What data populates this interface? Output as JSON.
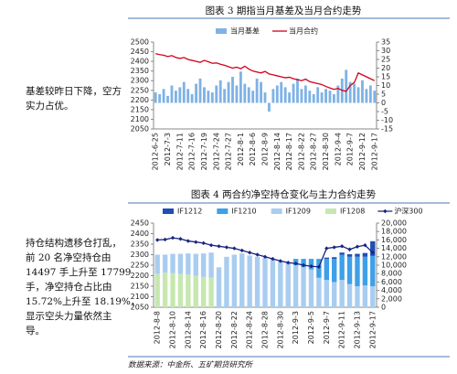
{
  "notes": [
    [
      "基差较昨日下降，空方",
      "实力占优。"
    ],
    [
      "持仓结构遗移仓打乱，",
      "前 20 名净空持仓由",
      "14497 手上升至 17799",
      "手，净空持仓占比由",
      "15.72%上升至 18.19%，",
      "显示空头力量依然主",
      "导。"
    ]
  ],
  "source": "数据来源：中金所、五矿期货研究所",
  "chart_data": [
    {
      "type": "combo",
      "title": "图表 3  期指当月基差及当月合约走势",
      "categories": [
        "2012-6-25",
        null,
        null,
        "2012-7-3",
        null,
        null,
        "2012-7-11",
        null,
        null,
        "2012-7-16",
        null,
        null,
        "2012-7-19",
        null,
        null,
        "2012-7-24",
        null,
        null,
        "2012-7-27",
        null,
        null,
        "2012-8-1",
        null,
        null,
        "2012-8-6",
        null,
        null,
        "2012-8-9",
        null,
        null,
        "2012-8-14",
        null,
        null,
        "2012-8-17",
        null,
        null,
        "2012-8-22",
        null,
        null,
        "2012-8-27",
        null,
        null,
        "2012-8-30",
        null,
        null,
        "2012-9-4",
        null,
        null,
        "2012-9-7",
        null,
        null,
        "2012-9-12",
        null,
        null,
        "2012-9-17"
      ],
      "series": [
        {
          "name": "当月基差",
          "type": "bar",
          "axis": "y2",
          "color": "#7fb2e5",
          "values": [
            6,
            5,
            8,
            4,
            10,
            7,
            9,
            12,
            8,
            5,
            11,
            14,
            9,
            7,
            6,
            10,
            13,
            8,
            12,
            15,
            10,
            18,
            11,
            9,
            7,
            14,
            12,
            6,
            -5,
            8,
            10,
            12,
            9,
            6,
            11,
            14,
            8,
            10,
            7,
            5,
            9,
            6,
            8,
            7,
            5,
            10,
            14,
            19,
            12,
            11,
            9,
            13,
            8,
            10,
            7
          ]
        },
        {
          "name": "当月合约",
          "type": "line",
          "axis": "y",
          "color": "#d0021b",
          "values": [
            2440,
            2435,
            2432,
            2425,
            2430,
            2420,
            2415,
            2420,
            2410,
            2405,
            2400,
            2395,
            2405,
            2398,
            2390,
            2392,
            2385,
            2380,
            2372,
            2365,
            2370,
            2362,
            2375,
            2360,
            2350,
            2345,
            2340,
            2348,
            2335,
            2330,
            2325,
            2320,
            2315,
            2318,
            2310,
            2305,
            2300,
            2308,
            2295,
            2290,
            2285,
            2280,
            2270,
            2262,
            2255,
            2260,
            2250,
            2245,
            2275,
            2290,
            2340,
            2330,
            2320,
            2310,
            2300
          ]
        }
      ],
      "ylim": [
        2050,
        2500
      ],
      "yticks": [
        2050,
        2100,
        2150,
        2200,
        2250,
        2300,
        2350,
        2400,
        2450,
        2500
      ],
      "y2lim": [
        -15,
        35
      ],
      "y2ticks": [
        -15,
        -10,
        -5,
        0,
        5,
        10,
        15,
        20,
        25,
        30,
        35
      ]
    },
    {
      "type": "combo",
      "title": "图表 4  两合约净空持仓变化与主力合约走势",
      "categories": [
        "2012-8-8",
        null,
        "2012-8-10",
        null,
        "2012-8-14",
        null,
        "2012-8-16",
        null,
        "2012-8-20",
        null,
        "2012-8-22",
        null,
        "2012-8-24",
        null,
        "2012-8-28",
        null,
        "2012-8-30",
        null,
        "2012-9-3",
        null,
        "2012-9-5",
        null,
        "2012-9-7",
        null,
        "2012-9-11",
        null,
        "2012-9-13",
        null,
        "2012-9-17"
      ],
      "series": [
        {
          "name": "IF1212",
          "type": "bar",
          "axis": "y2",
          "color": "#1f4eb4",
          "values": [
            0,
            0,
            0,
            0,
            0,
            0,
            0,
            0,
            0,
            0,
            0,
            0,
            0,
            0,
            0,
            0,
            0,
            0,
            0,
            0,
            0,
            0,
            300,
            400,
            500,
            600,
            700,
            900,
            3500
          ]
        },
        {
          "name": "IF1210",
          "type": "bar",
          "axis": "y2",
          "color": "#3da0e8",
          "values": [
            0,
            0,
            0,
            0,
            0,
            0,
            0,
            0,
            0,
            0,
            0,
            0,
            0,
            0,
            0,
            0,
            0,
            0,
            1500,
            2000,
            2500,
            4500,
            5000,
            5500,
            6000,
            6500,
            7000,
            6800,
            7200
          ]
        },
        {
          "name": "IF1209",
          "type": "bar",
          "axis": "y2",
          "color": "#a9cdf0",
          "values": [
            4500,
            4300,
            4600,
            4800,
            5000,
            5200,
            5600,
            6000,
            9500,
            12000,
            12500,
            12800,
            12300,
            12000,
            11800,
            11500,
            11000,
            10800,
            10000,
            9500,
            9000,
            7000,
            6500,
            6000,
            6500,
            5500,
            5000,
            5200,
            5000
          ]
        },
        {
          "name": "IF1208",
          "type": "bar",
          "axis": "y2",
          "color": "#c6e8b0",
          "values": [
            8000,
            8200,
            8100,
            7900,
            7800,
            7500,
            7200,
            7000,
            0,
            0,
            0,
            0,
            0,
            0,
            0,
            0,
            0,
            0,
            0,
            0,
            0,
            0,
            0,
            0,
            0,
            0,
            0,
            0,
            0
          ]
        },
        {
          "name": "沪深300",
          "type": "line",
          "axis": "y",
          "color": "#1a237e",
          "marker": "diamond",
          "values": [
            2370,
            2372,
            2380,
            2375,
            2365,
            2360,
            2355,
            2345,
            2340,
            2335,
            2330,
            2320,
            2310,
            2300,
            2290,
            2280,
            2270,
            2262,
            2258,
            2250,
            2245,
            2242,
            2330,
            2335,
            2340,
            2325,
            2338,
            2345,
            2310
          ]
        }
      ],
      "ylim": [
        2050,
        2450
      ],
      "yticks": [
        2050,
        2100,
        2150,
        2200,
        2250,
        2300,
        2350,
        2400,
        2450
      ],
      "y2lim": [
        0,
        20000
      ],
      "y2ticks": [
        0,
        {
          "value": 2000,
          "label": "2,000"
        },
        {
          "value": 4000,
          "label": "4,000"
        },
        {
          "value": 6000,
          "label": "6,000"
        },
        {
          "value": 8000,
          "label": "8,000"
        },
        {
          "value": 10000,
          "label": "10,000"
        },
        {
          "value": 12000,
          "label": "12,000"
        },
        {
          "value": 14000,
          "label": "14,000"
        },
        {
          "value": 16000,
          "label": "16,000"
        },
        {
          "value": 18000,
          "label": "18,000"
        },
        {
          "value": 20000,
          "label": "20,000"
        }
      ]
    }
  ]
}
